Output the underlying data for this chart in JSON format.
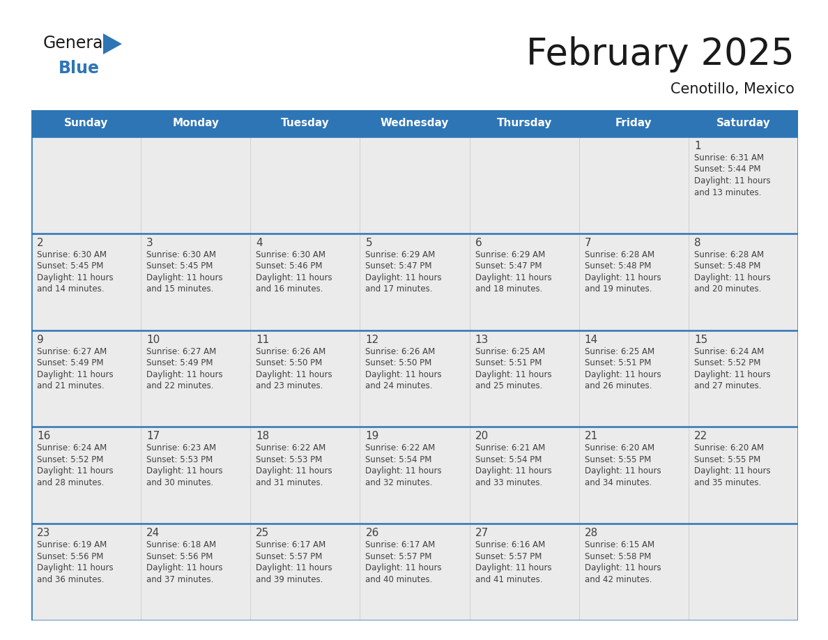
{
  "title": "February 2025",
  "subtitle": "Cenotillo, Mexico",
  "header_color": "#2E75B6",
  "header_text_color": "#FFFFFF",
  "day_names": [
    "Sunday",
    "Monday",
    "Tuesday",
    "Wednesday",
    "Thursday",
    "Friday",
    "Saturday"
  ],
  "bg_color": "#FFFFFF",
  "cell_bg": "#EBEBEB",
  "separator_color": "#2E75B6",
  "text_color": "#404040",
  "day_num_color": "#404040",
  "logo_color_general": "#1a1a1a",
  "logo_color_blue": "#2E75B6",
  "logo_triangle_color": "#2E75B6",
  "calendar": [
    [
      {
        "day": 0,
        "lines": []
      },
      {
        "day": 0,
        "lines": []
      },
      {
        "day": 0,
        "lines": []
      },
      {
        "day": 0,
        "lines": []
      },
      {
        "day": 0,
        "lines": []
      },
      {
        "day": 0,
        "lines": []
      },
      {
        "day": 1,
        "lines": [
          "Sunrise: 6:31 AM",
          "Sunset: 5:44 PM",
          "Daylight: 11 hours",
          "and 13 minutes."
        ]
      }
    ],
    [
      {
        "day": 2,
        "lines": [
          "Sunrise: 6:30 AM",
          "Sunset: 5:45 PM",
          "Daylight: 11 hours",
          "and 14 minutes."
        ]
      },
      {
        "day": 3,
        "lines": [
          "Sunrise: 6:30 AM",
          "Sunset: 5:45 PM",
          "Daylight: 11 hours",
          "and 15 minutes."
        ]
      },
      {
        "day": 4,
        "lines": [
          "Sunrise: 6:30 AM",
          "Sunset: 5:46 PM",
          "Daylight: 11 hours",
          "and 16 minutes."
        ]
      },
      {
        "day": 5,
        "lines": [
          "Sunrise: 6:29 AM",
          "Sunset: 5:47 PM",
          "Daylight: 11 hours",
          "and 17 minutes."
        ]
      },
      {
        "day": 6,
        "lines": [
          "Sunrise: 6:29 AM",
          "Sunset: 5:47 PM",
          "Daylight: 11 hours",
          "and 18 minutes."
        ]
      },
      {
        "day": 7,
        "lines": [
          "Sunrise: 6:28 AM",
          "Sunset: 5:48 PM",
          "Daylight: 11 hours",
          "and 19 minutes."
        ]
      },
      {
        "day": 8,
        "lines": [
          "Sunrise: 6:28 AM",
          "Sunset: 5:48 PM",
          "Daylight: 11 hours",
          "and 20 minutes."
        ]
      }
    ],
    [
      {
        "day": 9,
        "lines": [
          "Sunrise: 6:27 AM",
          "Sunset: 5:49 PM",
          "Daylight: 11 hours",
          "and 21 minutes."
        ]
      },
      {
        "day": 10,
        "lines": [
          "Sunrise: 6:27 AM",
          "Sunset: 5:49 PM",
          "Daylight: 11 hours",
          "and 22 minutes."
        ]
      },
      {
        "day": 11,
        "lines": [
          "Sunrise: 6:26 AM",
          "Sunset: 5:50 PM",
          "Daylight: 11 hours",
          "and 23 minutes."
        ]
      },
      {
        "day": 12,
        "lines": [
          "Sunrise: 6:26 AM",
          "Sunset: 5:50 PM",
          "Daylight: 11 hours",
          "and 24 minutes."
        ]
      },
      {
        "day": 13,
        "lines": [
          "Sunrise: 6:25 AM",
          "Sunset: 5:51 PM",
          "Daylight: 11 hours",
          "and 25 minutes."
        ]
      },
      {
        "day": 14,
        "lines": [
          "Sunrise: 6:25 AM",
          "Sunset: 5:51 PM",
          "Daylight: 11 hours",
          "and 26 minutes."
        ]
      },
      {
        "day": 15,
        "lines": [
          "Sunrise: 6:24 AM",
          "Sunset: 5:52 PM",
          "Daylight: 11 hours",
          "and 27 minutes."
        ]
      }
    ],
    [
      {
        "day": 16,
        "lines": [
          "Sunrise: 6:24 AM",
          "Sunset: 5:52 PM",
          "Daylight: 11 hours",
          "and 28 minutes."
        ]
      },
      {
        "day": 17,
        "lines": [
          "Sunrise: 6:23 AM",
          "Sunset: 5:53 PM",
          "Daylight: 11 hours",
          "and 30 minutes."
        ]
      },
      {
        "day": 18,
        "lines": [
          "Sunrise: 6:22 AM",
          "Sunset: 5:53 PM",
          "Daylight: 11 hours",
          "and 31 minutes."
        ]
      },
      {
        "day": 19,
        "lines": [
          "Sunrise: 6:22 AM",
          "Sunset: 5:54 PM",
          "Daylight: 11 hours",
          "and 32 minutes."
        ]
      },
      {
        "day": 20,
        "lines": [
          "Sunrise: 6:21 AM",
          "Sunset: 5:54 PM",
          "Daylight: 11 hours",
          "and 33 minutes."
        ]
      },
      {
        "day": 21,
        "lines": [
          "Sunrise: 6:20 AM",
          "Sunset: 5:55 PM",
          "Daylight: 11 hours",
          "and 34 minutes."
        ]
      },
      {
        "day": 22,
        "lines": [
          "Sunrise: 6:20 AM",
          "Sunset: 5:55 PM",
          "Daylight: 11 hours",
          "and 35 minutes."
        ]
      }
    ],
    [
      {
        "day": 23,
        "lines": [
          "Sunrise: 6:19 AM",
          "Sunset: 5:56 PM",
          "Daylight: 11 hours",
          "and 36 minutes."
        ]
      },
      {
        "day": 24,
        "lines": [
          "Sunrise: 6:18 AM",
          "Sunset: 5:56 PM",
          "Daylight: 11 hours",
          "and 37 minutes."
        ]
      },
      {
        "day": 25,
        "lines": [
          "Sunrise: 6:17 AM",
          "Sunset: 5:57 PM",
          "Daylight: 11 hours",
          "and 39 minutes."
        ]
      },
      {
        "day": 26,
        "lines": [
          "Sunrise: 6:17 AM",
          "Sunset: 5:57 PM",
          "Daylight: 11 hours",
          "and 40 minutes."
        ]
      },
      {
        "day": 27,
        "lines": [
          "Sunrise: 6:16 AM",
          "Sunset: 5:57 PM",
          "Daylight: 11 hours",
          "and 41 minutes."
        ]
      },
      {
        "day": 28,
        "lines": [
          "Sunrise: 6:15 AM",
          "Sunset: 5:58 PM",
          "Daylight: 11 hours",
          "and 42 minutes."
        ]
      },
      {
        "day": 0,
        "lines": []
      }
    ]
  ]
}
